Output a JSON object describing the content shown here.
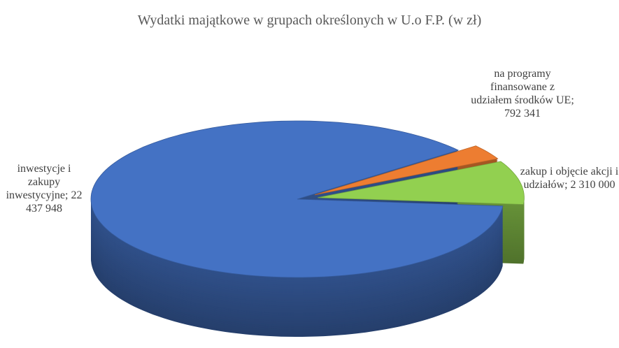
{
  "chart_data": {
    "type": "pie",
    "title": "Wydatki majątkowe w grupach określonych w U.o F.P. (w zł)",
    "categories": [
      "inwestycje i zakupy inwestycyjne",
      "na programy finansowane z udziałem środków UE",
      "zakup i objęcie akcji i udziałów"
    ],
    "values": [
      22437948,
      792341,
      2310000
    ],
    "value_labels": [
      "22 437 948",
      "792 341",
      "2 310 000"
    ],
    "colors": [
      "#4472c4",
      "#ed7d31",
      "#92d050"
    ],
    "explode": [
      false,
      true,
      true
    ]
  }
}
